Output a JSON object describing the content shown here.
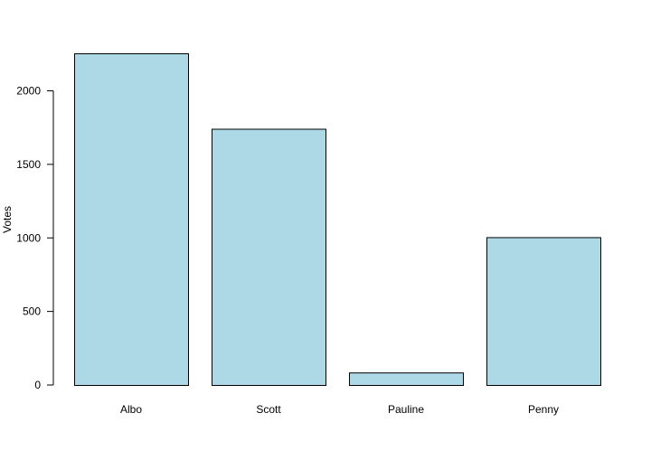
{
  "chart_data": {
    "type": "bar",
    "categories": [
      "Albo",
      "Scott",
      "Pauline",
      "Penny"
    ],
    "values": [
      2255,
      1742,
      85,
      1005
    ],
    "title": "",
    "xlabel": "",
    "ylabel": "Votes",
    "ylim": [
      0,
      2255
    ],
    "yticks": [
      0,
      500,
      1000,
      1500,
      2000
    ],
    "grid": false,
    "legend": "none",
    "bar_color": "#ADD8E6",
    "bar_border_color": "#000000"
  }
}
